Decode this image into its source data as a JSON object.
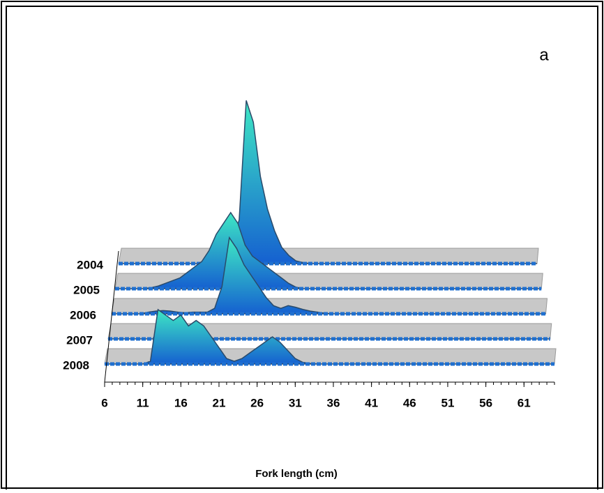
{
  "chart_data": {
    "type": "area3d",
    "title": "a",
    "x_label": "Fork length (cm)",
    "x": [
      6,
      7,
      8,
      9,
      10,
      11,
      12,
      13,
      14,
      15,
      16,
      17,
      18,
      19,
      20,
      21,
      22,
      23,
      24,
      25,
      26,
      27,
      28,
      29,
      30,
      31,
      32,
      33,
      34,
      35,
      36,
      37,
      38,
      39,
      40,
      41,
      42,
      43,
      44,
      45,
      46,
      47,
      48,
      49,
      50,
      51,
      52,
      53,
      54,
      55,
      56,
      57,
      58,
      59,
      60,
      61,
      62,
      63,
      64,
      65
    ],
    "xlim": [
      6,
      65
    ],
    "xticks": [
      6,
      11,
      16,
      21,
      26,
      31,
      36,
      41,
      46,
      51,
      56,
      61
    ],
    "series": [
      {
        "name": "2004",
        "color": "#1e6fd0",
        "values": [
          0,
          0,
          0,
          0,
          0,
          0,
          0,
          0,
          0,
          0,
          0,
          0,
          0.3,
          0.6,
          1,
          2,
          4,
          8,
          30,
          26,
          16,
          10,
          6,
          3,
          1.5,
          0.5,
          0.2,
          0,
          0,
          0,
          0,
          0,
          0,
          0,
          0,
          0,
          0,
          0,
          0,
          0,
          0,
          0,
          0,
          0,
          0,
          0,
          0,
          0,
          0,
          0,
          0,
          0,
          0,
          0,
          0,
          0,
          0,
          0,
          0,
          0
        ]
      },
      {
        "name": "2005",
        "color": "#1e6fd0",
        "values": [
          0,
          0,
          0,
          0,
          0,
          0.2,
          0.5,
          1,
          1.5,
          2,
          3,
          4,
          5,
          7,
          10,
          12,
          14,
          12,
          8,
          6,
          5,
          4,
          3,
          2,
          1,
          0.3,
          0,
          0,
          0,
          0,
          0,
          0,
          0,
          0,
          0,
          0,
          0,
          0,
          0,
          0,
          0,
          0,
          0,
          0,
          0,
          0,
          0,
          0,
          0,
          0,
          0,
          0,
          0,
          0,
          0,
          0,
          0,
          0,
          0,
          0
        ]
      },
      {
        "name": "2006",
        "color": "#1e6fd0",
        "values": [
          0,
          0,
          0,
          0,
          0,
          0.3,
          0.5,
          0.6,
          0.5,
          0.3,
          0.2,
          0.3,
          0.3,
          0.3,
          1,
          5,
          14,
          12,
          9,
          7,
          5,
          3,
          1.5,
          1,
          1.5,
          1.2,
          0.8,
          0.5,
          0.3,
          0.1,
          0,
          0,
          0,
          0,
          0,
          0,
          0,
          0,
          0,
          0,
          0,
          0,
          0,
          0,
          0,
          0,
          0,
          0,
          0,
          0,
          0,
          0,
          0,
          0,
          0,
          0,
          0,
          0,
          0,
          0
        ]
      },
      {
        "name": "2007",
        "color": "#1e6fd0",
        "values": [
          0,
          0,
          0,
          0,
          0,
          0,
          0,
          0.3,
          0.5,
          0.5,
          0.5,
          0.5,
          0.5,
          0.3,
          0.1,
          0,
          0,
          0,
          0,
          0,
          0,
          0,
          0,
          0,
          0,
          0,
          0,
          0,
          0,
          0,
          0,
          0,
          0,
          0,
          0,
          0,
          0,
          0,
          0,
          0,
          0,
          0,
          0,
          0,
          0,
          0,
          0,
          0,
          0,
          0,
          0,
          0,
          0,
          0,
          0,
          0,
          0,
          0,
          0,
          0
        ]
      },
      {
        "name": "2008",
        "color": "#1e6fd0",
        "values": [
          0,
          0,
          0,
          0,
          0,
          0,
          0.5,
          10,
          9,
          8,
          9,
          7,
          8,
          7,
          5,
          3,
          1,
          0.5,
          1,
          2,
          3,
          4,
          5,
          4,
          2.5,
          1,
          0.3,
          0.1,
          0,
          0,
          0,
          0,
          0,
          0,
          0,
          0,
          0,
          0,
          0,
          0,
          0,
          0,
          0,
          0,
          0,
          0,
          0,
          0,
          0,
          0,
          0,
          0,
          0,
          0,
          0,
          0,
          0,
          0,
          0,
          0
        ]
      }
    ]
  }
}
